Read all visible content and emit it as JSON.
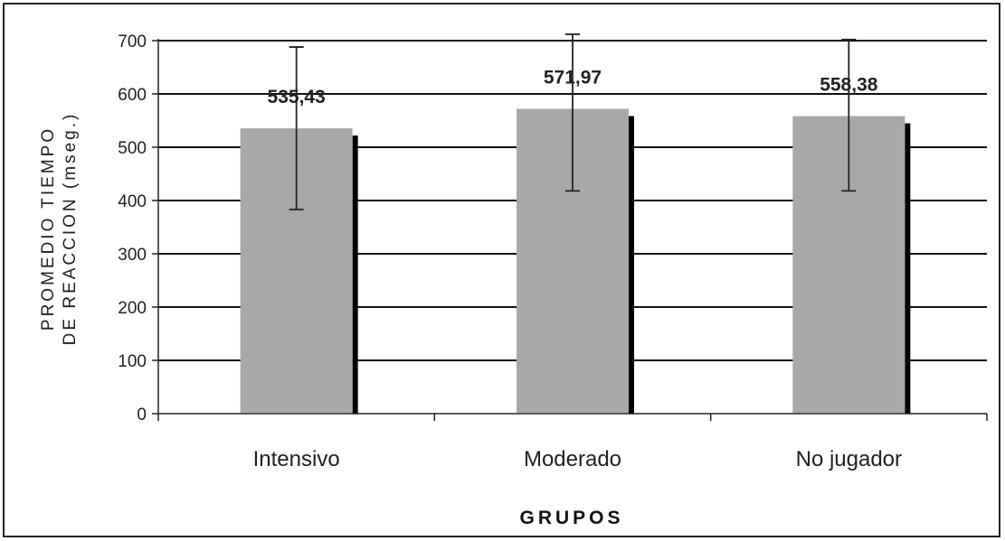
{
  "chart_data": {
    "type": "bar",
    "categories": [
      "Intensivo",
      "Moderado",
      "No jugador"
    ],
    "values": [
      535.43,
      571.97,
      558.38
    ],
    "value_labels": [
      "535,43",
      "571,97",
      "558,38"
    ],
    "error_bars": [
      {
        "low": 383,
        "high": 688
      },
      {
        "low": 418,
        "high": 712
      },
      {
        "low": 418,
        "high": 702
      }
    ],
    "title": "",
    "xlabel": "GRUPOS",
    "ylabel_lines": [
      "PROMEDIO TIEMPO",
      "DE REACCION (mseg.)"
    ],
    "ylim": [
      0,
      700
    ],
    "yticks": [
      0,
      100,
      200,
      300,
      400,
      500,
      600,
      700
    ],
    "grid": true,
    "legend": "none",
    "colors": {
      "bar": "#a8a8a8",
      "bar_shadow": "#000000",
      "grid": "#111111",
      "errorbar": "#222222"
    }
  }
}
